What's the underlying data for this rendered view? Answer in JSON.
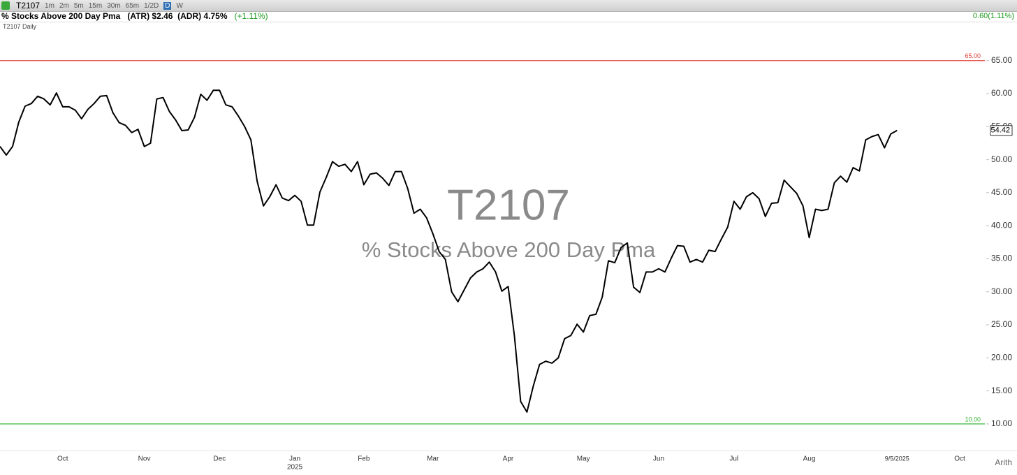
{
  "toolbar": {
    "symbol": "T2107",
    "intervals": [
      "1m",
      "2m",
      "5m",
      "15m",
      "30m",
      "65m",
      "1/2D",
      "D",
      "W"
    ],
    "selected": 7
  },
  "info": {
    "name": "% Stocks Above 200 Day Pma",
    "atr": "(ATR) $2.46",
    "adr": "(ADR) 4.75%",
    "change": "(+1.11%)",
    "right_change": "0.60(1.11%)",
    "study": "T2107 Daily",
    "scale_mode": "Arith"
  },
  "chart_data": {
    "type": "line",
    "watermark_title": "T2107",
    "watermark_subtitle": "% Stocks Above 200 Day Pma",
    "categories": [
      null,
      null,
      null,
      null,
      null,
      null,
      null,
      null,
      null,
      null,
      "Oct",
      null,
      null,
      null,
      null,
      null,
      null,
      null,
      null,
      null,
      null,
      null,
      null,
      "Nov",
      null,
      null,
      null,
      null,
      null,
      null,
      null,
      null,
      null,
      null,
      null,
      "Dec",
      null,
      null,
      null,
      null,
      null,
      null,
      null,
      null,
      null,
      null,
      null,
      "Jan",
      null,
      null,
      null,
      null,
      null,
      null,
      null,
      null,
      null,
      null,
      "Feb",
      null,
      null,
      null,
      null,
      null,
      null,
      null,
      null,
      null,
      null,
      "Mar",
      null,
      null,
      null,
      null,
      null,
      null,
      null,
      null,
      null,
      null,
      null,
      "Apr",
      null,
      null,
      null,
      null,
      null,
      null,
      null,
      null,
      null,
      null,
      null,
      "May",
      null,
      null,
      null,
      null,
      null,
      null,
      null,
      null,
      null,
      null,
      null,
      "Jun",
      null,
      null,
      null,
      null,
      null,
      null,
      null,
      null,
      null,
      null,
      null,
      "Jul",
      null,
      null,
      null,
      null,
      null,
      null,
      null,
      null,
      null,
      null,
      null,
      "Aug",
      null,
      null,
      null,
      null,
      null,
      null,
      null,
      null,
      null,
      null,
      null,
      null,
      null,
      "9/5/2025",
      null,
      null,
      null,
      null,
      null,
      null,
      null,
      null,
      null,
      "Oct",
      null,
      null,
      null,
      null
    ],
    "year_label": {
      "index": 47,
      "label": "2025"
    },
    "series": [
      {
        "name": "T2107",
        "color": "#000000",
        "values": [
          52.0,
          50.7,
          52.0,
          55.7,
          58.1,
          58.5,
          59.6,
          59.2,
          58.3,
          60.1,
          58.0,
          58.0,
          57.5,
          56.2,
          57.6,
          58.5,
          59.6,
          59.7,
          57.1,
          55.6,
          55.2,
          54.1,
          54.6,
          52.0,
          52.5,
          59.2,
          59.4,
          57.3,
          56.0,
          54.4,
          54.5,
          56.4,
          59.9,
          59.0,
          60.5,
          60.5,
          58.3,
          58.0,
          56.6,
          55.0,
          53.0,
          46.7,
          43.0,
          44.4,
          46.2,
          44.2,
          43.8,
          44.6,
          43.7,
          40.1,
          40.1,
          45.1,
          47.3,
          49.7,
          49.0,
          49.3,
          48.2,
          49.7,
          46.2,
          47.8,
          48.0,
          47.2,
          46.1,
          48.2,
          48.2,
          45.6,
          41.9,
          42.5,
          41.2,
          38.8,
          36.1,
          34.9,
          30.0,
          28.5,
          30.3,
          32.1,
          33.0,
          33.5,
          34.5,
          33.0,
          30.1,
          30.8,
          23.4,
          13.4,
          11.8,
          15.7,
          19.0,
          19.5,
          19.2,
          20.0,
          22.9,
          23.4,
          25.1,
          23.9,
          26.4,
          26.6,
          29.2,
          34.7,
          34.4,
          36.7,
          37.4,
          30.7,
          29.9,
          33.0,
          33.0,
          33.5,
          33.0,
          35.1,
          37.0,
          36.9,
          34.5,
          34.9,
          34.5,
          36.3,
          36.1,
          38.0,
          39.8,
          43.7,
          42.5,
          44.4,
          45.0,
          44.1,
          41.4,
          43.4,
          43.5,
          46.9,
          45.9,
          44.9,
          43.0,
          38.2,
          42.5,
          42.3,
          42.5,
          46.5,
          47.5,
          46.6,
          48.8,
          48.3,
          53.0,
          53.5,
          53.8,
          51.8,
          53.9,
          54.42,
          null,
          null,
          null,
          null,
          null,
          null,
          null,
          null,
          null,
          null,
          null,
          null,
          null,
          null
        ]
      }
    ],
    "last_value_label": "54.42",
    "ylim": [
      6.5,
      71
    ],
    "yticks": [
      {
        "value": 10,
        "label": "10.00"
      },
      {
        "value": 15,
        "label": "15.00"
      },
      {
        "value": 20,
        "label": "20.00"
      },
      {
        "value": 25,
        "label": "25.00"
      },
      {
        "value": 30,
        "label": "30.00"
      },
      {
        "value": 35,
        "label": "35.00"
      },
      {
        "value": 40,
        "label": "40.00"
      },
      {
        "value": 45,
        "label": "45.00"
      },
      {
        "value": 50,
        "label": "50.00"
      },
      {
        "value": 55,
        "label": "55.00"
      },
      {
        "value": 60,
        "label": "60.00"
      },
      {
        "value": 65,
        "label": "65.00"
      }
    ],
    "reference_lines": [
      {
        "value": 65,
        "label": "65.00",
        "color": "#e0403a"
      },
      {
        "value": 10,
        "label": "10.00",
        "color": "#3ab83a"
      }
    ],
    "grid": false
  }
}
